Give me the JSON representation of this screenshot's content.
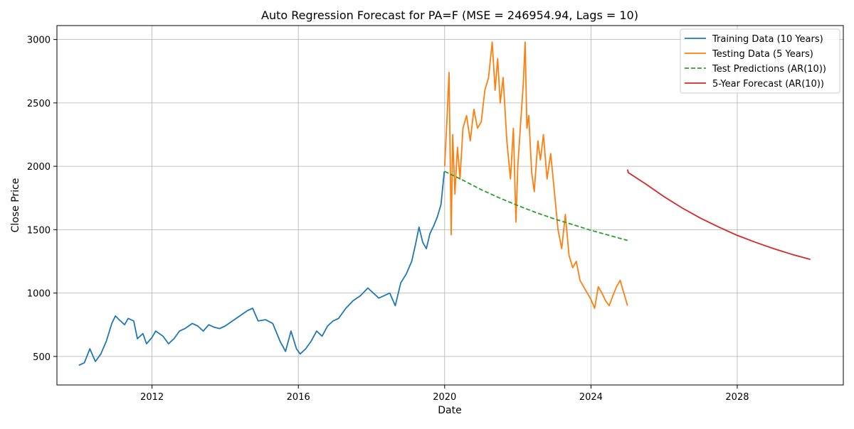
{
  "chart_data": {
    "type": "line",
    "title": "Auto Regression Forecast for PA=F (MSE = 246954.94, Lags = 10)",
    "xlabel": "Date",
    "ylabel": "Close Price",
    "xlim": [
      2009.4,
      2030.9
    ],
    "ylim": [
      275,
      3110
    ],
    "xticks": [
      2012,
      2016,
      2020,
      2024,
      2028
    ],
    "yticks": [
      500,
      1000,
      1500,
      2000,
      2500,
      3000
    ],
    "grid": true,
    "legend_position": "top-right",
    "series": [
      {
        "name": "Training Data (10 Years)",
        "color": "#1f77b4",
        "style": "solid",
        "x": [
          2010.0,
          2010.15,
          2010.3,
          2010.45,
          2010.6,
          2010.75,
          2010.9,
          2011.0,
          2011.1,
          2011.25,
          2011.35,
          2011.5,
          2011.6,
          2011.75,
          2011.85,
          2012.0,
          2012.1,
          2012.3,
          2012.45,
          2012.6,
          2012.75,
          2012.9,
          2013.1,
          2013.25,
          2013.4,
          2013.55,
          2013.7,
          2013.85,
          2014.0,
          2014.2,
          2014.4,
          2014.6,
          2014.75,
          2014.9,
          2015.1,
          2015.3,
          2015.5,
          2015.65,
          2015.8,
          2015.95,
          2016.05,
          2016.2,
          2016.35,
          2016.5,
          2016.65,
          2016.8,
          2016.95,
          2017.1,
          2017.3,
          2017.5,
          2017.7,
          2017.9,
          2018.05,
          2018.2,
          2018.35,
          2018.5,
          2018.65,
          2018.8,
          2018.95,
          2019.1,
          2019.2,
          2019.3,
          2019.4,
          2019.5,
          2019.6,
          2019.7,
          2019.8,
          2019.9,
          2019.99
        ],
        "y": [
          430,
          450,
          560,
          460,
          520,
          620,
          760,
          820,
          790,
          750,
          800,
          780,
          640,
          680,
          600,
          650,
          700,
          660,
          600,
          640,
          700,
          720,
          760,
          740,
          700,
          750,
          730,
          720,
          740,
          780,
          820,
          860,
          880,
          780,
          790,
          760,
          620,
          540,
          700,
          560,
          520,
          560,
          620,
          700,
          660,
          740,
          780,
          800,
          880,
          940,
          980,
          1040,
          1000,
          960,
          980,
          1000,
          900,
          1080,
          1150,
          1250,
          1380,
          1520,
          1400,
          1350,
          1470,
          1530,
          1600,
          1700,
          1960
        ]
      },
      {
        "name": "Testing Data (5 Years)",
        "color": "#ff7f0e",
        "style": "solid",
        "x": [
          2020.0,
          2020.06,
          2020.12,
          2020.18,
          2020.22,
          2020.28,
          2020.35,
          2020.42,
          2020.5,
          2020.6,
          2020.7,
          2020.8,
          2020.9,
          2021.0,
          2021.1,
          2021.2,
          2021.3,
          2021.38,
          2021.45,
          2021.52,
          2021.6,
          2021.7,
          2021.8,
          2021.88,
          2021.95,
          2022.0,
          2022.08,
          2022.15,
          2022.2,
          2022.25,
          2022.3,
          2022.38,
          2022.45,
          2022.55,
          2022.62,
          2022.7,
          2022.8,
          2022.9,
          2023.0,
          2023.1,
          2023.2,
          2023.3,
          2023.4,
          2023.5,
          2023.6,
          2023.7,
          2023.8,
          2023.9,
          2024.0,
          2024.1,
          2024.2,
          2024.3,
          2024.4,
          2024.5,
          2024.6,
          2024.7,
          2024.8,
          2024.9,
          2025.0
        ],
        "y": [
          2000,
          2350,
          2740,
          1460,
          2250,
          1780,
          2150,
          1900,
          2300,
          2400,
          2200,
          2450,
          2300,
          2350,
          2600,
          2700,
          2980,
          2600,
          2850,
          2500,
          2700,
          2200,
          1900,
          2300,
          1560,
          2000,
          2350,
          2650,
          2980,
          2300,
          2400,
          1950,
          1800,
          2200,
          2050,
          2250,
          1900,
          2100,
          1800,
          1500,
          1350,
          1620,
          1300,
          1200,
          1250,
          1100,
          1050,
          1000,
          950,
          880,
          1050,
          1000,
          940,
          900,
          980,
          1050,
          1100,
          1000,
          900
        ]
      },
      {
        "name": "Test Predictions (AR(10))",
        "color": "#2ca02c",
        "style": "dashed",
        "x": [
          2020.0,
          2020.5,
          2021.0,
          2021.5,
          2022.0,
          2022.5,
          2023.0,
          2023.5,
          2024.0,
          2024.5,
          2025.0
        ],
        "y": [
          1960,
          1890,
          1815,
          1750,
          1690,
          1635,
          1585,
          1540,
          1495,
          1455,
          1415
        ]
      },
      {
        "name": "5-Year Forecast (AR(10))",
        "color": "#d62728",
        "style": "solid",
        "x": [
          2025.0,
          2025.02,
          2025.1,
          2025.5,
          2026.0,
          2026.5,
          2027.0,
          2027.5,
          2028.0,
          2028.5,
          2029.0,
          2029.5,
          2030.0
        ],
        "y": [
          1975,
          1950,
          1935,
          1860,
          1760,
          1670,
          1590,
          1520,
          1455,
          1400,
          1350,
          1305,
          1265
        ]
      }
    ]
  }
}
